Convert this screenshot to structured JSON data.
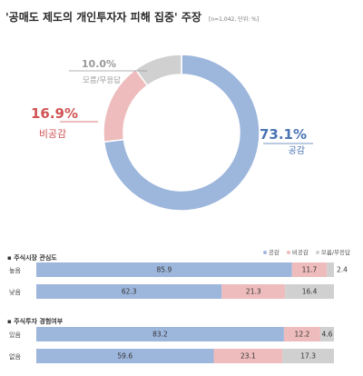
{
  "header": {
    "title": "'공매도 제도의 개인투자자 피해 집중' 주장",
    "subtitle": "[n=1,042, 단위: %]"
  },
  "colors": {
    "agree": "#9db6dc",
    "disagree": "#eebcbc",
    "unknown": "#d0d0d0",
    "agree_text": "#4a74b4",
    "disagree_text": "#d25353",
    "unknown_text": "#9a9a9a"
  },
  "chart_data": [
    {
      "type": "pie",
      "title": "'공매도 제도의 개인투자자 피해 집중' 주장",
      "labels": [
        "공감",
        "비공감",
        "모름/무응답"
      ],
      "values": [
        73.1,
        16.9,
        10.0
      ],
      "value_labels": [
        "73.1%",
        "16.9%",
        "10.0%"
      ],
      "colors": [
        "#9db6dc",
        "#eebcbc",
        "#d0d0d0"
      ]
    },
    {
      "type": "bar",
      "stacked": true,
      "orientation": "horizontal",
      "title": "주식시장 관심도",
      "categories": [
        "높음",
        "낮음"
      ],
      "series": [
        {
          "name": "공감",
          "values": [
            85.9,
            62.3
          ],
          "labels": [
            "85.9",
            "62.3"
          ]
        },
        {
          "name": "비공감",
          "values": [
            11.7,
            21.3
          ],
          "labels": [
            "11.7",
            "21.3"
          ]
        },
        {
          "name": "모름/무응답",
          "values": [
            2.4,
            16.4
          ],
          "labels": [
            "2.4",
            "16.4"
          ]
        }
      ]
    },
    {
      "type": "bar",
      "stacked": true,
      "orientation": "horizontal",
      "title": "주식투자 경험여부",
      "categories": [
        "있음",
        "없음"
      ],
      "series": [
        {
          "name": "공감",
          "values": [
            83.2,
            59.6
          ],
          "labels": [
            "83.2",
            "59.6"
          ]
        },
        {
          "name": "비공감",
          "values": [
            12.2,
            23.1
          ],
          "labels": [
            "12.2",
            "23.1"
          ]
        },
        {
          "name": "모름/무응답",
          "values": [
            4.6,
            17.3
          ],
          "labels": [
            "4.6",
            "17.3"
          ]
        }
      ]
    }
  ],
  "legend": [
    "공감",
    "비공감",
    "모름/무응답"
  ]
}
